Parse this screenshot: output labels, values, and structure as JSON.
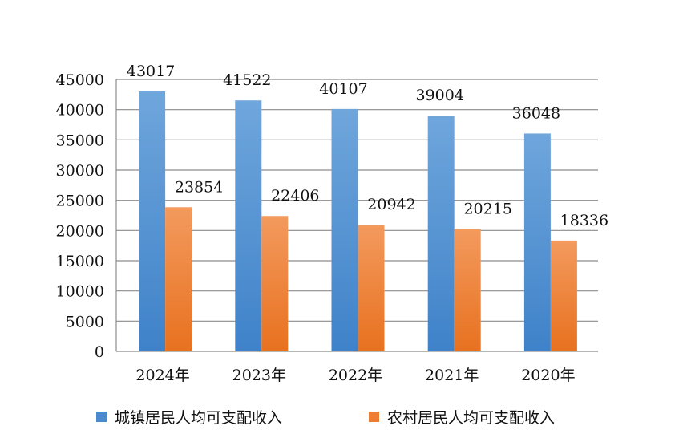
{
  "chart_data": {
    "type": "bar",
    "categories": [
      "2024年",
      "2023年",
      "2022年",
      "2021年",
      "2020年"
    ],
    "series": [
      {
        "name": "城镇居民人均可支配收入",
        "values": [
          43017,
          41522,
          40107,
          39004,
          36048
        ],
        "color": "#4a8bd0"
      },
      {
        "name": "农村居民人均可支配收入",
        "values": [
          23854,
          22406,
          20942,
          20215,
          18336
        ],
        "color": "#ee7d33"
      }
    ],
    "ylim": [
      0,
      45000
    ],
    "yticks": [
      0,
      5000,
      10000,
      15000,
      20000,
      25000,
      30000,
      35000,
      40000,
      45000
    ],
    "grid": true,
    "legend_position": "bottom",
    "data_labels": true
  }
}
